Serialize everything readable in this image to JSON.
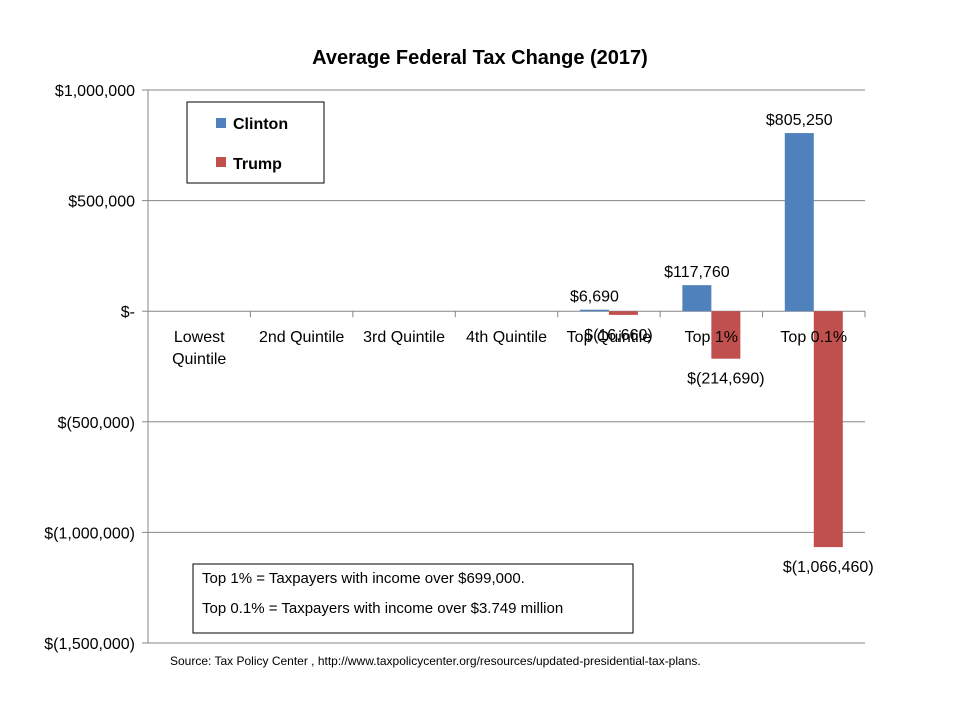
{
  "chart_data": {
    "type": "bar",
    "title": "Average Federal Tax Change (2017)",
    "categories": [
      "Lowest Quintile",
      "2nd Quintile",
      "3rd Quintile",
      "4th Quintile",
      "Top Quintile",
      "Top 1%",
      "Top 0.1%"
    ],
    "series": [
      {
        "name": "Clinton",
        "color": "#4f81bd",
        "values": [
          0,
          0,
          0,
          0,
          6690,
          117760,
          805250
        ],
        "labels": [
          "",
          "",
          "",
          "",
          "$6,690",
          "$117,760",
          "$805,250"
        ]
      },
      {
        "name": "Trump",
        "color": "#c0504d",
        "values": [
          0,
          0,
          0,
          0,
          -16660,
          -214690,
          -1066460
        ],
        "labels": [
          "",
          "",
          "",
          "",
          "$(16,660)",
          "$(214,690)",
          "$(1,066,460)"
        ]
      }
    ],
    "ylim": [
      -1500000,
      1000000
    ],
    "yticks": [
      1000000,
      500000,
      0,
      -500000,
      -1000000,
      -1500000
    ],
    "ytick_labels": [
      "$1,000,000",
      "$500,000",
      "$-",
      "$(500,000)",
      "$(1,000,000)",
      "$(1,500,000)"
    ],
    "grid": true,
    "legend_position": "top-left",
    "xlabel": "",
    "ylabel": "",
    "notes": [
      "Top 1% = Taxpayers with income over $699,000.",
      "Top 0.1% = Taxpayers with income over $3.749 million"
    ],
    "source": "Source: Tax Policy Center , http://www.taxpolicycenter.org/resources/updated-presidential-tax-plans."
  }
}
